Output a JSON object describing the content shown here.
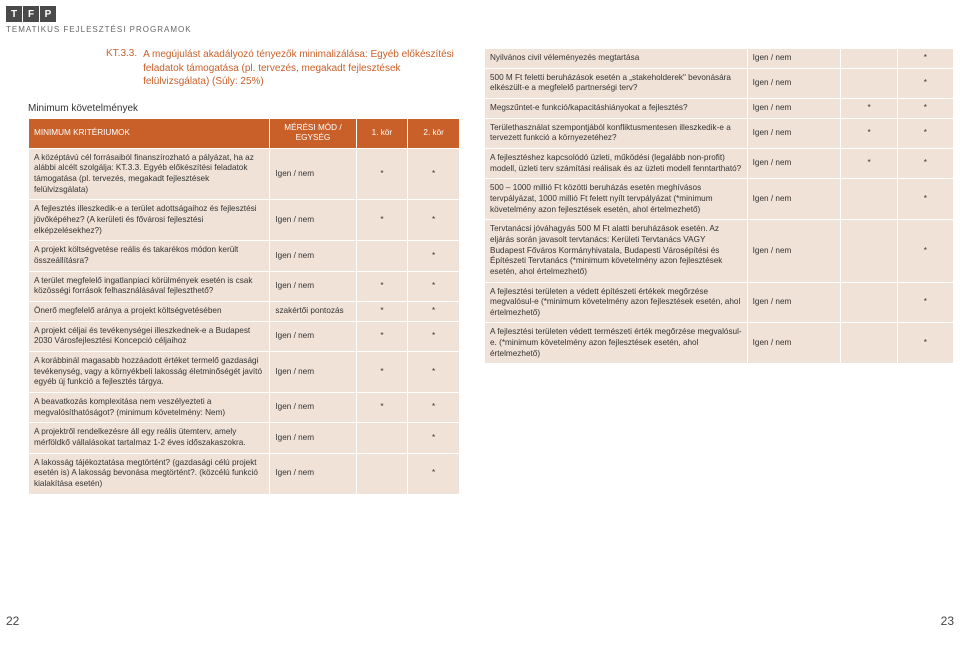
{
  "logo": {
    "letters": [
      "T",
      "F",
      "P"
    ],
    "sub": "TEMATIKUS FEJLESZTÉSI PROGRAMOK"
  },
  "kt": {
    "code": "KT.3.3.",
    "text": "A megújulást akadályozó tényezők minimalizálása: Egyéb előkészítési feladatok támogatása (pl. tervezés, megakadt fejlesztések felülvizsgálata) (Súly: 25%)"
  },
  "minRequirements": "Minimum követelmények",
  "headers": {
    "crit": "MINIMUM KRITÉRIUMOK",
    "measure": "MÉRÉSI MÓD / EGYSÉG",
    "kor1": "1. kör",
    "kor2": "2. kör"
  },
  "leftRows": [
    {
      "c": "A középtávú cél forrásaiból finanszírozható a pályázat, ha az alábbi alcélt szolgálja: KT.3.3. Egyéb előkészítési feladatok támogatása (pl. tervezés, megakadt fejlesztések felülvizsgálata)",
      "m": "Igen / nem",
      "k1": "*",
      "k2": "*"
    },
    {
      "c": "A fejlesztés illeszkedik-e a terület adottságaihoz és fejlesztési jövőképéhez? (A kerületi és fővárosi fejlesztési elképzelésekhez?)",
      "m": "Igen / nem",
      "k1": "*",
      "k2": "*"
    },
    {
      "c": "A projekt költségvetése reális és takarékos módon került összeállításra?",
      "m": "Igen / nem",
      "k1": "",
      "k2": "*"
    },
    {
      "c": "A terület megfelelő ingatlanpiaci körülmények esetén is csak közösségi források felhasználásával fejleszthető?",
      "m": "Igen / nem",
      "k1": "*",
      "k2": "*"
    },
    {
      "c": "Önerő megfelelő aránya a projekt költségvetésében",
      "m": "szakértői pontozás",
      "k1": "*",
      "k2": "*"
    },
    {
      "c": "A projekt céljai és tevékenységei illeszkednek-e a Budapest 2030 Városfejlesztési Koncepció céljaihoz",
      "m": "Igen / nem",
      "k1": "*",
      "k2": "*"
    },
    {
      "c": "A korábbinál magasabb hozzáadott értéket termelő gazdasági tevékenység, vagy a környékbeli lakosság életminőségét javító egyéb új funkció a fejlesztés tárgya.",
      "m": "Igen / nem",
      "k1": "*",
      "k2": "*"
    },
    {
      "c": "A beavatkozás komplexitása nem veszélyezteti a megvalósíthatóságot? (minimum követelmény: Nem)",
      "m": "Igen / nem",
      "k1": "*",
      "k2": "*"
    },
    {
      "c": "A projektről rendelkezésre áll egy reális ütemterv, amely mérföldkő vállalásokat tartalmaz 1-2 éves időszakaszokra.",
      "m": "Igen / nem",
      "k1": "",
      "k2": "*"
    },
    {
      "c": "A lakosság tájékoztatása megtörtént? (gazdasági célú projekt esetén is) A lakosság bevonása megtörtént?. (közcélú funkció kialakítása esetén)",
      "m": "Igen / nem",
      "k1": "",
      "k2": "*"
    }
  ],
  "rightRows": [
    {
      "c": "Nyilvános civil véleményezés megtartása",
      "m": "Igen / nem",
      "k1": "",
      "k2": "*"
    },
    {
      "c": "500 M Ft feletti beruházások esetén a „stakeholderek\" bevonására elkészült-e a megfelelő partnerségi terv?",
      "m": "Igen / nem",
      "k1": "",
      "k2": "*"
    },
    {
      "c": "Megszűntet-e funkció/kapacitáshiányokat a fejlesztés?",
      "m": "Igen / nem",
      "k1": "*",
      "k2": "*"
    },
    {
      "c": "Területhasználat szempontjából konfliktusmentesen illeszkedik-e a tervezett funkció a környezetéhez?",
      "m": "Igen / nem",
      "k1": "*",
      "k2": "*"
    },
    {
      "c": "A fejlesztéshez kapcsolódó üzleti, működési (legalább non-profit) modell, üzleti terv számítási reálisak és az üzleti modell fenntartható?",
      "m": "Igen / nem",
      "k1": "*",
      "k2": "*"
    },
    {
      "c": "500 – 1000 millió Ft közötti beruházás esetén meghívásos tervpályázat, 1000 millió Ft felett nyílt tervpályázat (*minimum követelmény azon fejlesztések esetén, ahol értelmezhető)",
      "m": "Igen / nem",
      "k1": "",
      "k2": "*"
    },
    {
      "c": "Tervtanácsi jóváhagyás 500 M Ft alatti beruházások esetén. Az eljárás során javasolt tervtanács: Kerületi Tervtanács VAGY Budapest Főváros Kormányhivatala, Budapesti Városépítési és Építészeti Tervtanács (*minimum követelmény azon fejlesztések esetén, ahol értelmezhető)",
      "m": "Igen / nem",
      "k1": "",
      "k2": "*"
    },
    {
      "c": "A fejlesztési területen a védett építészeti értékek megőrzése megvalósul-e (*minimum követelmény azon fejlesztések esetén, ahol értelmezhető)",
      "m": "Igen / nem",
      "k1": "",
      "k2": "*"
    },
    {
      "c": "A fejlesztési területen védett természeti érték megőrzése megvalósul-e. (*minimum követelmény azon fejlesztések esetén, ahol értelmezhető)",
      "m": "Igen / nem",
      "k1": "",
      "k2": "*"
    }
  ],
  "pageLeft": "22",
  "pageRight": "23",
  "colors": {
    "accent": "#c9602a",
    "cellBg": "#f0e2d7"
  }
}
